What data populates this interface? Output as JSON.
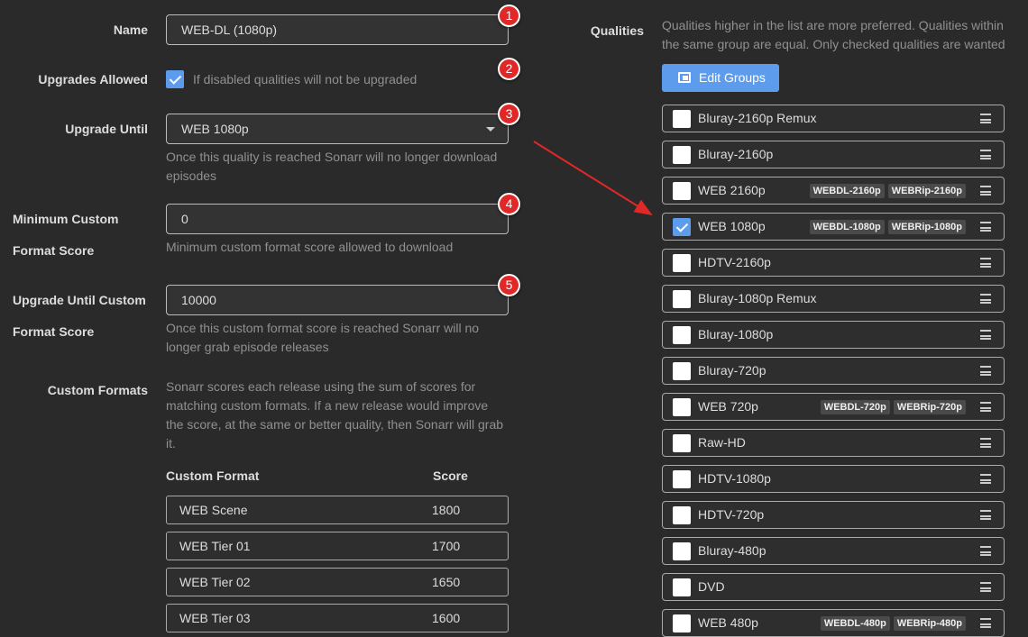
{
  "form": {
    "name_label": "Name",
    "name_value": "WEB-DL (1080p)",
    "upgrades_label": "Upgrades Allowed",
    "upgrades_checked": true,
    "upgrades_help": "If disabled qualities will not be upgraded",
    "upgrade_until_label": "Upgrade Until",
    "upgrade_until_value": "WEB 1080p",
    "upgrade_until_help": "Once this quality is reached Sonarr will no longer download episodes",
    "min_score_label_1": "Minimum Custom",
    "min_score_label_2": "Format Score",
    "min_score_value": "0",
    "min_score_help": "Minimum custom format score allowed to download",
    "until_score_label_1": "Upgrade Until Custom",
    "until_score_label_2": "Format Score",
    "until_score_value": "10000",
    "until_score_help": "Once this custom format score is reached Sonarr will no longer grab episode releases",
    "cf_label": "Custom Formats",
    "cf_help": "Sonarr scores each release using the sum of scores for matching custom formats. If a new release would improve the score, at the same or better quality, then Sonarr will grab it.",
    "cf_col_name": "Custom Format",
    "cf_col_score": "Score",
    "cf_rows": [
      {
        "name": "WEB Scene",
        "score": "1800"
      },
      {
        "name": "WEB Tier 01",
        "score": "1700"
      },
      {
        "name": "WEB Tier 02",
        "score": "1650"
      },
      {
        "name": "WEB Tier 03",
        "score": "1600"
      }
    ]
  },
  "annotations": [
    "1",
    "2",
    "3",
    "4",
    "5"
  ],
  "annotation_color": "#e02828",
  "qualities": {
    "label": "Qualities",
    "help": "Qualities higher in the list are more preferred. Qualities within the same group are equal. Only checked qualities are wanted",
    "edit_groups": "Edit Groups",
    "items": [
      {
        "name": "Bluray-2160p Remux",
        "checked": false,
        "tags": []
      },
      {
        "name": "Bluray-2160p",
        "checked": false,
        "tags": []
      },
      {
        "name": "WEB 2160p",
        "checked": false,
        "tags": [
          "WEBDL-2160p",
          "WEBRip-2160p"
        ]
      },
      {
        "name": "WEB 1080p",
        "checked": true,
        "tags": [
          "WEBDL-1080p",
          "WEBRip-1080p"
        ]
      },
      {
        "name": "HDTV-2160p",
        "checked": false,
        "tags": []
      },
      {
        "name": "Bluray-1080p Remux",
        "checked": false,
        "tags": []
      },
      {
        "name": "Bluray-1080p",
        "checked": false,
        "tags": []
      },
      {
        "name": "Bluray-720p",
        "checked": false,
        "tags": []
      },
      {
        "name": "WEB 720p",
        "checked": false,
        "tags": [
          "WEBDL-720p",
          "WEBRip-720p"
        ]
      },
      {
        "name": "Raw-HD",
        "checked": false,
        "tags": []
      },
      {
        "name": "HDTV-1080p",
        "checked": false,
        "tags": []
      },
      {
        "name": "HDTV-720p",
        "checked": false,
        "tags": []
      },
      {
        "name": "Bluray-480p",
        "checked": false,
        "tags": []
      },
      {
        "name": "DVD",
        "checked": false,
        "tags": []
      },
      {
        "name": "WEB 480p",
        "checked": false,
        "tags": [
          "WEBDL-480p",
          "WEBRip-480p"
        ]
      }
    ]
  },
  "accent_color": "#5d9cec"
}
